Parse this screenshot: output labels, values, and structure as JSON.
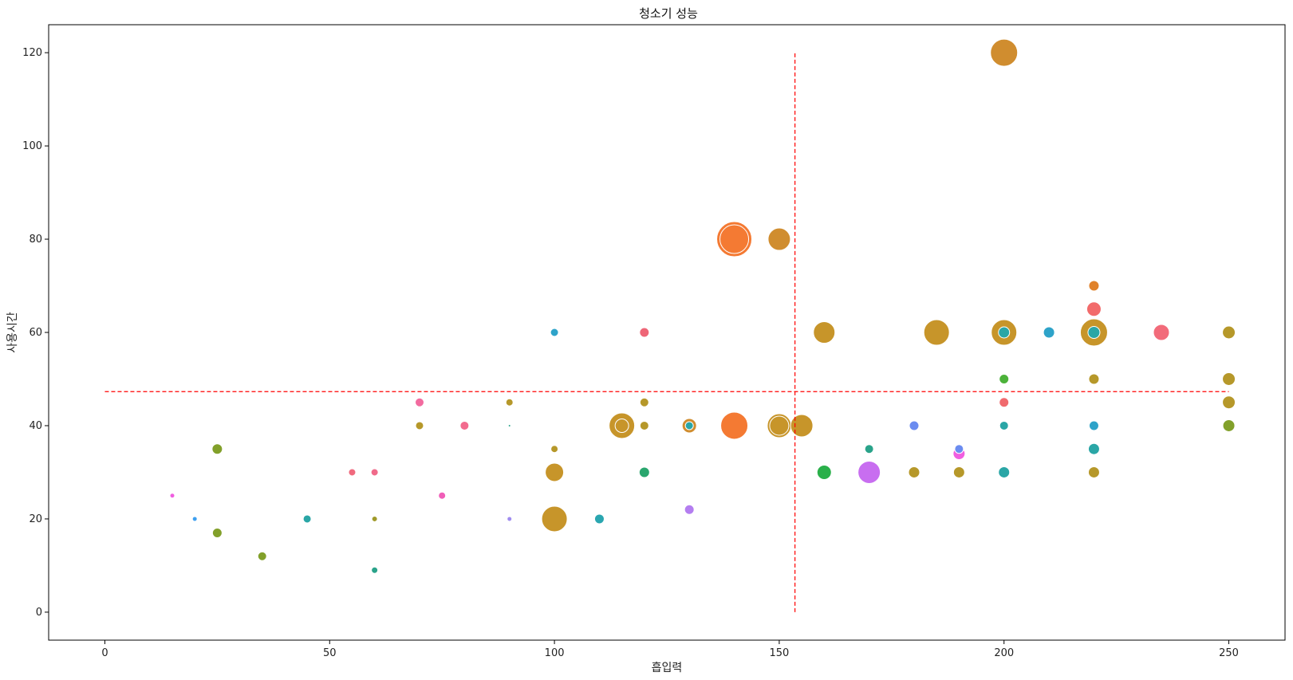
{
  "chart_data": {
    "type": "scatter",
    "title": "청소기 성능",
    "xlabel": "흡입력",
    "ylabel": "사용시간",
    "xlim": [
      -12.5,
      262.5
    ],
    "ylim": [
      -6,
      126
    ],
    "xticks": [
      0,
      50,
      100,
      150,
      200,
      250
    ],
    "yticks": [
      0,
      20,
      40,
      60,
      80,
      100,
      120
    ],
    "grid": false,
    "legend": "none",
    "reference_lines": {
      "color": "#ff0000",
      "style": "dashed",
      "vertical": {
        "x": 153.5,
        "y_from": 0,
        "y_to": 120
      },
      "horizontal": {
        "y": 47.3,
        "x_from": 0,
        "x_to": 250
      }
    },
    "points": [
      {
        "x": 200,
        "y": 120,
        "size": 34,
        "color": "#d08d2f"
      },
      {
        "x": 140,
        "y": 80,
        "size": 44,
        "color": "#f47a33"
      },
      {
        "x": 140,
        "y": 80,
        "size": 36,
        "color": "#f47a33"
      },
      {
        "x": 150,
        "y": 80,
        "size": 28,
        "color": "#d08d2f"
      },
      {
        "x": 220,
        "y": 70,
        "size": 13,
        "color": "#e0822b"
      },
      {
        "x": 220,
        "y": 65,
        "size": 18,
        "color": "#f26b6b"
      },
      {
        "x": 100,
        "y": 60,
        "size": 10,
        "color": "#2ea3c9"
      },
      {
        "x": 120,
        "y": 60,
        "size": 12,
        "color": "#ee6677"
      },
      {
        "x": 160,
        "y": 60,
        "size": 27,
        "color": "#c7952a"
      },
      {
        "x": 185,
        "y": 60,
        "size": 32,
        "color": "#c7952a"
      },
      {
        "x": 200,
        "y": 60,
        "size": 32,
        "color": "#c7952a"
      },
      {
        "x": 200,
        "y": 60,
        "size": 14,
        "color": "#2aa6a6"
      },
      {
        "x": 210,
        "y": 60,
        "size": 14,
        "color": "#2ea3c9"
      },
      {
        "x": 220,
        "y": 60,
        "size": 34,
        "color": "#c7952a"
      },
      {
        "x": 220,
        "y": 60,
        "size": 15,
        "color": "#2aa6a6"
      },
      {
        "x": 235,
        "y": 60,
        "size": 20,
        "color": "#f26b7a"
      },
      {
        "x": 250,
        "y": 60,
        "size": 16,
        "color": "#b6982a"
      },
      {
        "x": 200,
        "y": 50,
        "size": 12,
        "color": "#4cb23a"
      },
      {
        "x": 220,
        "y": 50,
        "size": 13,
        "color": "#b6982a"
      },
      {
        "x": 250,
        "y": 50,
        "size": 16,
        "color": "#b6982a"
      },
      {
        "x": 70,
        "y": 45,
        "size": 11,
        "color": "#f26b9f"
      },
      {
        "x": 90,
        "y": 45,
        "size": 9,
        "color": "#b6982a"
      },
      {
        "x": 120,
        "y": 45,
        "size": 11,
        "color": "#b6982a"
      },
      {
        "x": 200,
        "y": 45,
        "size": 12,
        "color": "#f06a6e"
      },
      {
        "x": 250,
        "y": 45,
        "size": 16,
        "color": "#b6982a"
      },
      {
        "x": 70,
        "y": 40,
        "size": 10,
        "color": "#b6982a"
      },
      {
        "x": 80,
        "y": 40,
        "size": 11,
        "color": "#f26b8e"
      },
      {
        "x": 90,
        "y": 40,
        "size": 3,
        "color": "#2aa38a"
      },
      {
        "x": 115,
        "y": 40,
        "size": 32,
        "color": "#c7952a"
      },
      {
        "x": 115,
        "y": 40,
        "size": 17,
        "color": "#c7952a"
      },
      {
        "x": 120,
        "y": 40,
        "size": 11,
        "color": "#b6982a"
      },
      {
        "x": 130,
        "y": 40,
        "size": 18,
        "color": "#d08d2f"
      },
      {
        "x": 130,
        "y": 40,
        "size": 10,
        "color": "#2aa6a6"
      },
      {
        "x": 140,
        "y": 40,
        "size": 34,
        "color": "#f47a33"
      },
      {
        "x": 150,
        "y": 40,
        "size": 30,
        "color": "#c7952a"
      },
      {
        "x": 150,
        "y": 40,
        "size": 24,
        "color": "#c7952a"
      },
      {
        "x": 155,
        "y": 40,
        "size": 28,
        "color": "#c7952a"
      },
      {
        "x": 180,
        "y": 40,
        "size": 12,
        "color": "#6b8cf0"
      },
      {
        "x": 200,
        "y": 40,
        "size": 11,
        "color": "#2aa6a6"
      },
      {
        "x": 220,
        "y": 40,
        "size": 12,
        "color": "#2ea3c9"
      },
      {
        "x": 250,
        "y": 40,
        "size": 15,
        "color": "#82a02a"
      },
      {
        "x": 25,
        "y": 35,
        "size": 13,
        "color": "#82a02a"
      },
      {
        "x": 100,
        "y": 35,
        "size": 9,
        "color": "#b6982a"
      },
      {
        "x": 170,
        "y": 35,
        "size": 11,
        "color": "#2aa38a"
      },
      {
        "x": 190,
        "y": 35,
        "size": 11,
        "color": "#6b8cf0"
      },
      {
        "x": 190,
        "y": 34,
        "size": 15,
        "color": "#f05ee0"
      },
      {
        "x": 220,
        "y": 35,
        "size": 14,
        "color": "#2aa6a6"
      },
      {
        "x": 55,
        "y": 30,
        "size": 9,
        "color": "#f06a7e"
      },
      {
        "x": 60,
        "y": 30,
        "size": 9,
        "color": "#f06a8a"
      },
      {
        "x": 100,
        "y": 30,
        "size": 23,
        "color": "#c7952a"
      },
      {
        "x": 120,
        "y": 30,
        "size": 13,
        "color": "#2aa66e"
      },
      {
        "x": 160,
        "y": 30,
        "size": 18,
        "color": "#2ab04a"
      },
      {
        "x": 170,
        "y": 30,
        "size": 28,
        "color": "#c86ef0"
      },
      {
        "x": 180,
        "y": 30,
        "size": 14,
        "color": "#b6982a"
      },
      {
        "x": 190,
        "y": 30,
        "size": 14,
        "color": "#b6982a"
      },
      {
        "x": 200,
        "y": 30,
        "size": 14,
        "color": "#2aa6a6"
      },
      {
        "x": 220,
        "y": 30,
        "size": 14,
        "color": "#b6982a"
      },
      {
        "x": 15,
        "y": 25,
        "size": 6,
        "color": "#f05ee0"
      },
      {
        "x": 75,
        "y": 25,
        "size": 9,
        "color": "#f05eb8"
      },
      {
        "x": 20,
        "y": 20,
        "size": 6,
        "color": "#3ea0f0"
      },
      {
        "x": 45,
        "y": 20,
        "size": 10,
        "color": "#2aa6a6"
      },
      {
        "x": 60,
        "y": 20,
        "size": 7,
        "color": "#a09a2a"
      },
      {
        "x": 90,
        "y": 20,
        "size": 6,
        "color": "#a08cf0"
      },
      {
        "x": 100,
        "y": 20,
        "size": 32,
        "color": "#c7952a"
      },
      {
        "x": 110,
        "y": 20,
        "size": 12,
        "color": "#2aa6b0"
      },
      {
        "x": 130,
        "y": 22,
        "size": 12,
        "color": "#b47ef0"
      },
      {
        "x": 25,
        "y": 17,
        "size": 12,
        "color": "#82a02a"
      },
      {
        "x": 35,
        "y": 12,
        "size": 11,
        "color": "#82a02a"
      },
      {
        "x": 60,
        "y": 9,
        "size": 8,
        "color": "#2aa38a"
      }
    ]
  }
}
